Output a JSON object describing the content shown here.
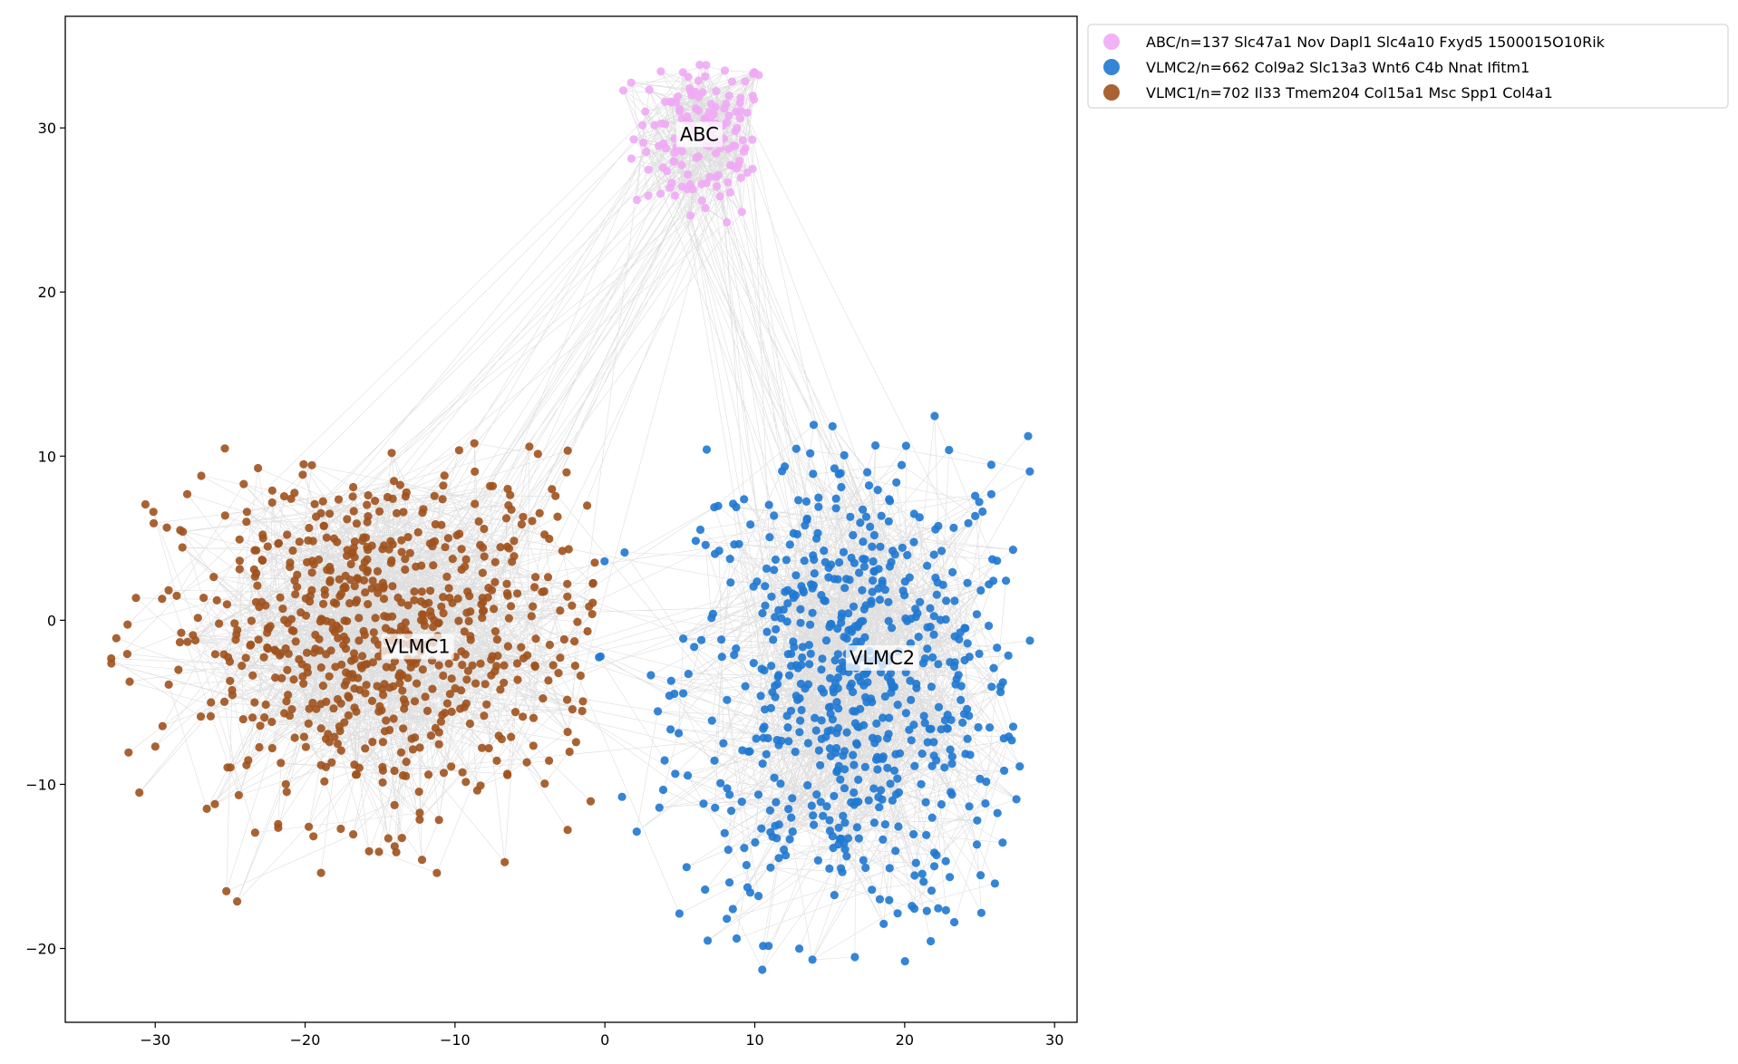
{
  "chart_data": {
    "type": "scatter",
    "title": "",
    "xlabel": "",
    "ylabel": "",
    "xlim": [
      -36,
      31.5
    ],
    "ylim": [
      -24.5,
      36.8
    ],
    "xticks": [
      -30,
      -20,
      -10,
      0,
      10,
      20,
      30
    ],
    "yticks": [
      -20,
      -10,
      0,
      10,
      20,
      30
    ],
    "grid": false,
    "legend_placement": "outside upper-right",
    "edges": "k-nearest-neighbor graph drawn as faint grey lines between cells",
    "edge_color": "#a0a0a0",
    "series": [
      {
        "name": "ABC/n=137 Slc47a1 Nov Dapl1 Slc4a10 Fxyd5 1500015O10Rik",
        "label": "ABC",
        "color": "#f0aaf5",
        "n": 137,
        "center": [
          6.5,
          29.5
        ],
        "spread": [
          2.3,
          2.6
        ],
        "x_range": [
          0.5,
          10.5
        ],
        "y_range": [
          23,
          34.2
        ],
        "label_pos": [
          6.3,
          29.6
        ]
      },
      {
        "name": "VLMC2/n=662 Col9a2 Slc13a3 Wnt6 C4b Nnat Ifitm1",
        "label": "VLMC2",
        "color": "#1f78d1",
        "n": 662,
        "center": [
          16.5,
          -4
        ],
        "spread": [
          5.8,
          7.5
        ],
        "x_range": [
          -2.5,
          28.5
        ],
        "y_range": [
          -21.5,
          12.8
        ],
        "label_pos": [
          18.5,
          -2.3
        ]
      },
      {
        "name": "VLMC1/n=702 Il33 Tmem204 Col15a1 Msc Spp1 Col4a1",
        "label": "VLMC1",
        "color": "#a0521d",
        "n": 702,
        "center": [
          -15,
          -1
        ],
        "spread": [
          7.5,
          5.5
        ],
        "x_range": [
          -33,
          -0.5
        ],
        "y_range": [
          -17.8,
          10.8
        ],
        "label_pos": [
          -12.5,
          -1.6
        ]
      }
    ]
  }
}
